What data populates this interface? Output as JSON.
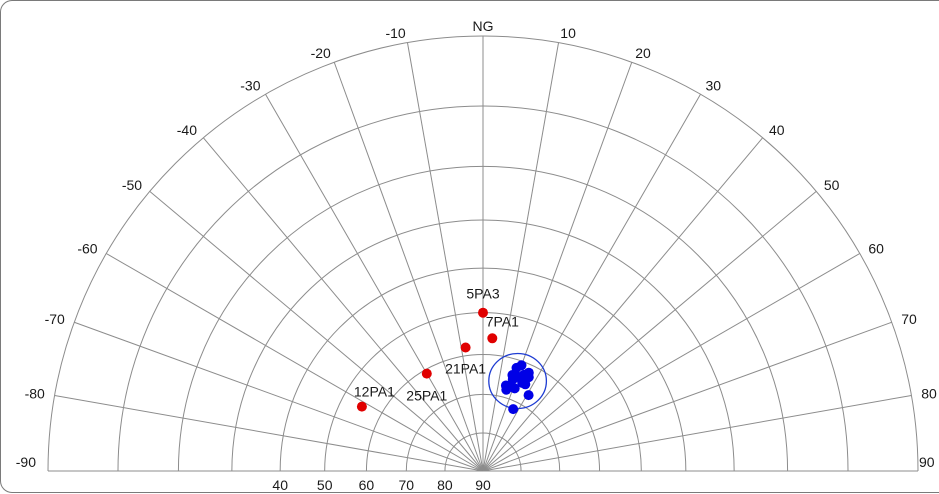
{
  "chart_data": {
    "type": "scatter",
    "projection": "polar-half (stereographic)",
    "pole_label": "NG",
    "azimuth_labels": [
      "-90",
      "-80",
      "-70",
      "-60",
      "-50",
      "-40",
      "-30",
      "-20",
      "-10",
      "NG",
      "10",
      "20",
      "30",
      "40",
      "50",
      "60",
      "70",
      "80",
      "90"
    ],
    "radial_labels": [
      "40",
      "50",
      "60",
      "70",
      "80",
      "90"
    ],
    "colors": {
      "grid": "#8c8c8c",
      "labeled_points": "#e00000",
      "cluster_points": "#0000e6",
      "cone": "#1e3cd2"
    },
    "labeled_points": [
      {
        "name": "5PA3",
        "azimuth": 0,
        "dip": 50
      },
      {
        "name": "7PA1",
        "azimuth": 4,
        "dip": 56
      },
      {
        "name": "21PA1",
        "azimuth": -8,
        "dip": 58
      },
      {
        "name": "25PA1",
        "azimuth": -30,
        "dip": 61
      },
      {
        "name": "12PA1",
        "azimuth": -62,
        "dip": 55
      }
    ],
    "cluster_points": [
      {
        "azimuth": 18,
        "dip": 62
      },
      {
        "azimuth": 20,
        "dip": 61
      },
      {
        "azimuth": 17,
        "dip": 64
      },
      {
        "azimuth": 20,
        "dip": 64
      },
      {
        "azimuth": 23,
        "dip": 63
      },
      {
        "azimuth": 21,
        "dip": 64
      },
      {
        "azimuth": 25,
        "dip": 62
      },
      {
        "azimuth": 26,
        "dip": 63
      },
      {
        "azimuth": 18,
        "dip": 65
      },
      {
        "azimuth": 24,
        "dip": 65
      },
      {
        "azimuth": 26,
        "dip": 65
      },
      {
        "azimuth": 15,
        "dip": 67
      },
      {
        "azimuth": 16,
        "dip": 67
      },
      {
        "azimuth": 18,
        "dip": 67
      },
      {
        "azimuth": 21,
        "dip": 67
      },
      {
        "azimuth": 16,
        "dip": 68
      },
      {
        "azimuth": 31,
        "dip": 67
      },
      {
        "azimuth": 26,
        "dip": 72
      }
    ],
    "confidence_cone": {
      "azimuth": 21,
      "dip": 65,
      "radius_deg": 6.8
    }
  }
}
